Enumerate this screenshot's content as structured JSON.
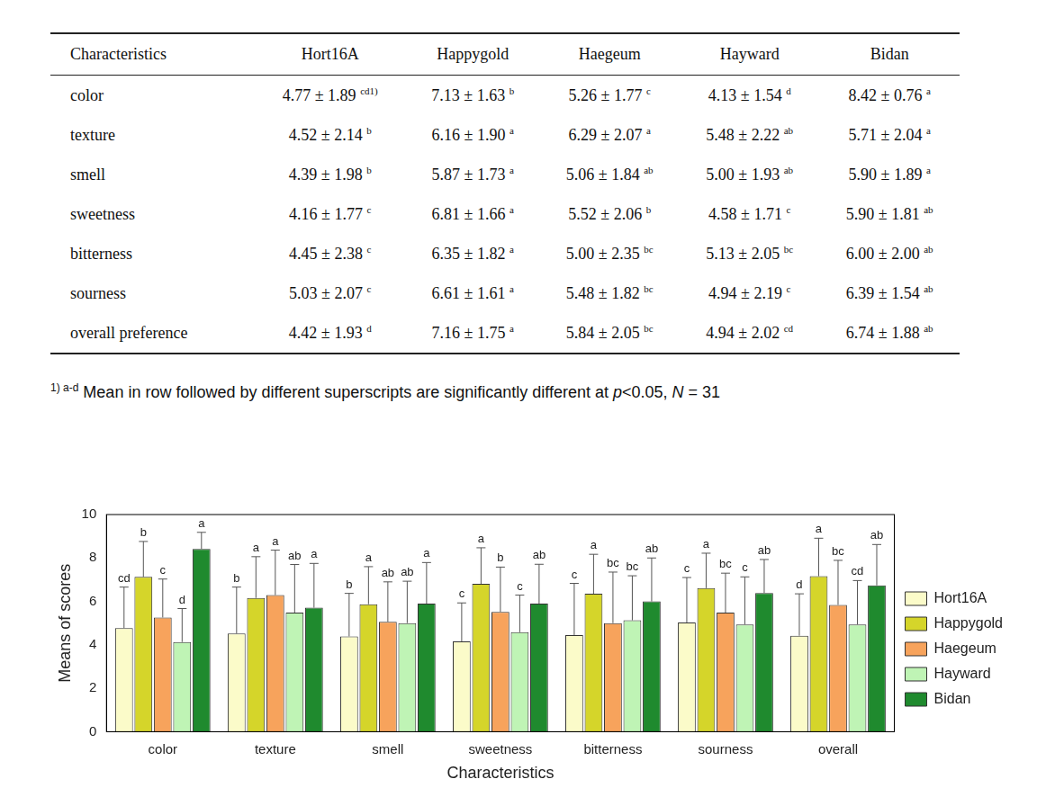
{
  "table": {
    "header": [
      "Characteristics",
      "Hort16A",
      "Happygold",
      "Haegeum",
      "Hayward",
      "Bidan"
    ],
    "rows": [
      {
        "label": "color",
        "cells": [
          {
            "text": "4.77 ± 1.89",
            "sup": "cd1)"
          },
          {
            "text": "7.13 ± 1.63",
            "sup": "b"
          },
          {
            "text": "5.26 ± 1.77",
            "sup": "c"
          },
          {
            "text": "4.13 ± 1.54",
            "sup": "d"
          },
          {
            "text": "8.42 ± 0.76",
            "sup": "a"
          }
        ]
      },
      {
        "label": "texture",
        "cells": [
          {
            "text": "4.52 ± 2.14",
            "sup": "b"
          },
          {
            "text": "6.16 ± 1.90",
            "sup": "a"
          },
          {
            "text": "6.29 ± 2.07",
            "sup": "a"
          },
          {
            "text": "5.48 ± 2.22",
            "sup": "ab"
          },
          {
            "text": "5.71 ± 2.04",
            "sup": "a"
          }
        ]
      },
      {
        "label": "smell",
        "cells": [
          {
            "text": "4.39 ± 1.98",
            "sup": "b"
          },
          {
            "text": "5.87 ± 1.73",
            "sup": "a"
          },
          {
            "text": "5.06 ± 1.84",
            "sup": "ab"
          },
          {
            "text": "5.00 ± 1.93",
            "sup": "ab"
          },
          {
            "text": "5.90 ± 1.89",
            "sup": "a"
          }
        ]
      },
      {
        "label": "sweetness",
        "cells": [
          {
            "text": "4.16 ± 1.77",
            "sup": "c"
          },
          {
            "text": "6.81 ± 1.66",
            "sup": "a"
          },
          {
            "text": "5.52 ± 2.06",
            "sup": "b"
          },
          {
            "text": "4.58 ± 1.71",
            "sup": "c"
          },
          {
            "text": "5.90 ± 1.81",
            "sup": "ab"
          }
        ]
      },
      {
        "label": "bitterness",
        "cells": [
          {
            "text": "4.45 ± 2.38",
            "sup": "c"
          },
          {
            "text": "6.35 ± 1.82",
            "sup": "a"
          },
          {
            "text": "5.00 ± 2.35",
            "sup": "bc"
          },
          {
            "text": "5.13 ± 2.05",
            "sup": "bc"
          },
          {
            "text": "6.00 ± 2.00",
            "sup": "ab"
          }
        ]
      },
      {
        "label": "sourness",
        "cells": [
          {
            "text": "5.03 ± 2.07",
            "sup": "c"
          },
          {
            "text": "6.61 ± 1.61",
            "sup": "a"
          },
          {
            "text": "5.48 ± 1.82",
            "sup": "bc"
          },
          {
            "text": "4.94 ± 2.19",
            "sup": "c"
          },
          {
            "text": "6.39 ± 1.54",
            "sup": "ab"
          }
        ]
      },
      {
        "label": "overall preference",
        "cells": [
          {
            "text": "4.42 ± 1.93",
            "sup": "d"
          },
          {
            "text": "7.16 ± 1.75",
            "sup": "a"
          },
          {
            "text": "5.84 ± 2.05",
            "sup": "bc"
          },
          {
            "text": "4.94 ± 2.02",
            "sup": "cd"
          },
          {
            "text": "6.74 ± 1.88",
            "sup": "ab"
          }
        ]
      }
    ],
    "footnote": [
      {
        "text": "1) a-d",
        "style": "sup"
      },
      {
        "text": " Mean in row followed by different superscripts are significantly different at "
      },
      {
        "text": "p",
        "style": "italic"
      },
      {
        "text": "<0.05, "
      },
      {
        "text": "N",
        "style": "italic"
      },
      {
        "text": " = 31"
      }
    ]
  },
  "chart_data": {
    "type": "bar",
    "x_label": "Characteristics",
    "y_label": "Means of scores",
    "categories": [
      "color",
      "texture",
      "smell",
      "sweetness",
      "bitterness",
      "sourness",
      "overall"
    ],
    "ylim": [
      0,
      10
    ],
    "yticks": [
      0,
      2,
      4,
      6,
      8,
      10
    ],
    "grid": false,
    "legend": "right",
    "series": [
      {
        "name": "Hort16A",
        "color": "#fbfbc9",
        "values": [
          4.77,
          4.52,
          4.39,
          4.16,
          4.45,
          5.03,
          4.42
        ],
        "errors": [
          1.89,
          2.14,
          1.98,
          1.77,
          2.38,
          2.07,
          1.93
        ],
        "letters": [
          "cd",
          "b",
          "b",
          "c",
          "c",
          "c",
          "d"
        ]
      },
      {
        "name": "Happygold",
        "color": "#d5d52a",
        "values": [
          7.13,
          6.16,
          5.87,
          6.81,
          6.35,
          6.61,
          7.16
        ],
        "errors": [
          1.63,
          1.9,
          1.73,
          1.66,
          1.82,
          1.61,
          1.75
        ],
        "letters": [
          "b",
          "a",
          "a",
          "a",
          "a",
          "a",
          "a"
        ]
      },
      {
        "name": "Haegeum",
        "color": "#f7a35c",
        "values": [
          5.26,
          6.29,
          5.06,
          5.52,
          5.0,
          5.48,
          5.84
        ],
        "errors": [
          1.77,
          2.07,
          1.84,
          2.06,
          2.35,
          1.82,
          2.05
        ],
        "letters": [
          "c",
          "a",
          "ab",
          "b",
          "bc",
          "bc",
          "bc"
        ]
      },
      {
        "name": "Hayward",
        "color": "#bff4b5",
        "values": [
          4.13,
          5.48,
          5.0,
          4.58,
          5.13,
          4.94,
          4.94
        ],
        "errors": [
          1.54,
          2.22,
          1.93,
          1.71,
          2.05,
          2.19,
          2.02
        ],
        "letters": [
          "d",
          "ab",
          "ab",
          "c",
          "bc",
          "c",
          "cd"
        ]
      },
      {
        "name": "Bidan",
        "color": "#1f8a2e",
        "values": [
          8.42,
          5.71,
          5.9,
          5.9,
          6.0,
          6.39,
          6.74
        ],
        "errors": [
          0.76,
          2.04,
          1.89,
          1.81,
          2.0,
          1.54,
          1.88
        ],
        "letters": [
          "a",
          "a",
          "a",
          "ab",
          "ab",
          "ab",
          "ab"
        ]
      }
    ]
  }
}
